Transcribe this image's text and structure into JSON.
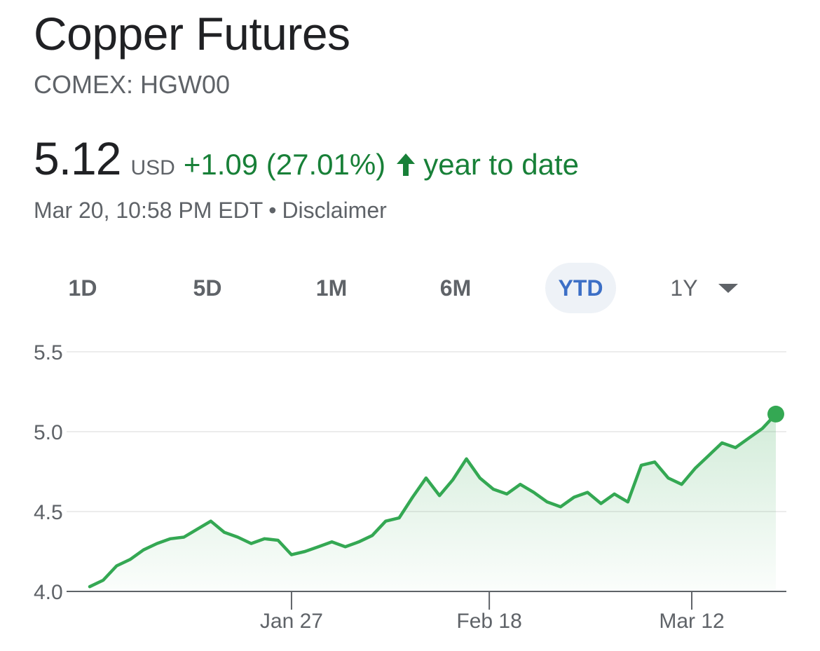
{
  "header": {
    "title": "Copper Futures",
    "ticker": "COMEX: HGW00"
  },
  "quote": {
    "price": "5.12",
    "currency": "USD",
    "change": "+1.09 (27.01%)",
    "period_label": "year to date",
    "timestamp": "Mar 20, 10:58 PM EDT",
    "separator": "•",
    "disclaimer": "Disclaimer",
    "up_icon": "arrow-up-icon"
  },
  "ranges": {
    "tabs": [
      "1D",
      "5D",
      "1M",
      "6M",
      "YTD",
      "1Y"
    ],
    "selected": "YTD",
    "dropdown_icon": "caret-down-icon"
  },
  "colors": {
    "positive": "#188038",
    "line": "#34a853",
    "selected_tab_text": "#3c6fc6",
    "selected_tab_bg": "#eef2f7",
    "muted_text": "#5f6368"
  },
  "chart_data": {
    "type": "area",
    "ylim": [
      4.0,
      5.5
    ],
    "yticks": [
      "5.5",
      "5.0",
      "4.5",
      "4.0"
    ],
    "xticks": [
      "Jan 27",
      "Feb 18",
      "Mar 12"
    ],
    "grid": true,
    "series": [
      {
        "values": [
          4.03,
          4.07,
          4.16,
          4.2,
          4.26,
          4.3,
          4.33,
          4.34,
          4.39,
          4.44,
          4.37,
          4.34,
          4.3,
          4.33,
          4.32,
          4.23,
          4.25,
          4.28,
          4.31,
          4.28,
          4.31,
          4.35,
          4.44,
          4.46,
          4.59,
          4.71,
          4.6,
          4.7,
          4.83,
          4.71,
          4.64,
          4.61,
          4.67,
          4.62,
          4.56,
          4.53,
          4.59,
          4.62,
          4.55,
          4.61,
          4.56,
          4.79,
          4.81,
          4.71,
          4.67,
          4.77,
          4.85,
          4.93,
          4.9,
          4.96,
          5.02,
          5.11
        ]
      }
    ]
  }
}
